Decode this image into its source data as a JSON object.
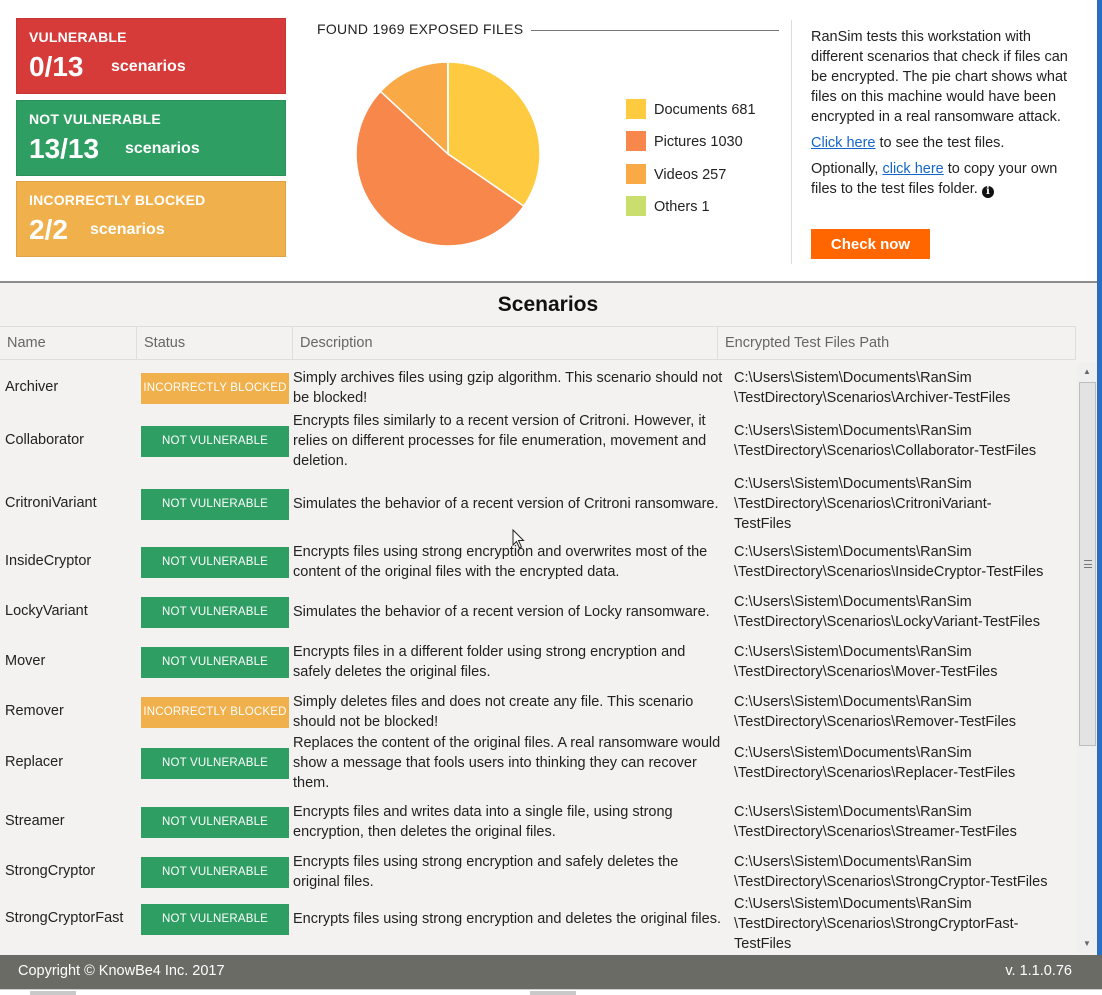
{
  "summary": {
    "vulnerable": {
      "label": "VULNERABLE",
      "value": "0/13",
      "unit": "scenarios",
      "color": "#d63a39"
    },
    "not_vulnerable": {
      "label": "NOT VULNERABLE",
      "value": "13/13",
      "unit": "scenarios",
      "color": "#2e9e63"
    },
    "incorrectly_blocked": {
      "label": "INCORRECTLY BLOCKED",
      "value": "2/2",
      "unit": "scenarios",
      "color": "#f0b04b"
    }
  },
  "chart_data": {
    "type": "pie",
    "title": "FOUND 1969 EXPOSED FILES",
    "categories": [
      "Documents",
      "Pictures",
      "Videos",
      "Others"
    ],
    "values": [
      681,
      1030,
      257,
      1
    ],
    "legend": [
      "Documents 681",
      "Pictures 1030",
      "Videos 257",
      "Others 1"
    ],
    "colors": [
      "#fecb40",
      "#f7874b",
      "#f9aa47",
      "#c8df6d"
    ],
    "legend_position": "right"
  },
  "info": {
    "paragraph1": "RanSim tests this workstation with different scenarios that check if files can be encrypted. The pie chart shows what files on this machine would have been encrypted in a real ransomware attack.",
    "link1": "Click here",
    "after_link1": " to see the test files.",
    "before_link2": "Optionally, ",
    "link2": "click here",
    "after_link2": " to copy your own files to the test files folder.",
    "info_icon": "info-icon",
    "check_button": "Check now"
  },
  "scenarios": {
    "title": "Scenarios",
    "columns": [
      "Name",
      "Status",
      "Description",
      "Encrypted Test Files Path"
    ],
    "status_colors": {
      "INCORRECTLY BLOCKED": "#f0b04b",
      "NOT VULNERABLE": "#2e9e63"
    },
    "rows": [
      {
        "name": "Archiver",
        "status": "INCORRECTLY BLOCKED",
        "description": "Simply archives files using gzip algorithm. This scenario should not be blocked!",
        "path": [
          "C:\\Users\\Sistem\\Documents\\RanSim",
          "\\TestDirectory\\Scenarios\\Archiver-TestFiles"
        ]
      },
      {
        "name": "Collaborator",
        "status": "NOT VULNERABLE",
        "description": "Encrypts files similarly to a recent version of Critroni. However, it relies on different processes for file enumeration, movement and deletion.",
        "path": [
          "C:\\Users\\Sistem\\Documents\\RanSim",
          "\\TestDirectory\\Scenarios\\Collaborator-TestFiles"
        ]
      },
      {
        "name": "CritroniVariant",
        "status": "NOT VULNERABLE",
        "description": "Simulates the behavior of a recent version of Critroni ransomware.",
        "path": [
          "C:\\Users\\Sistem\\Documents\\RanSim",
          "\\TestDirectory\\Scenarios\\CritroniVariant-",
          "TestFiles"
        ]
      },
      {
        "name": "InsideCryptor",
        "status": "NOT VULNERABLE",
        "description": "Encrypts files using strong encryption and overwrites most of the content of the original files with the encrypted data.",
        "path": [
          "C:\\Users\\Sistem\\Documents\\RanSim",
          "\\TestDirectory\\Scenarios\\InsideCryptor-TestFiles"
        ]
      },
      {
        "name": "LockyVariant",
        "status": "NOT VULNERABLE",
        "description": "Simulates the behavior of a recent version of Locky ransomware.",
        "path": [
          "C:\\Users\\Sistem\\Documents\\RanSim",
          "\\TestDirectory\\Scenarios\\LockyVariant-TestFiles"
        ]
      },
      {
        "name": "Mover",
        "status": "NOT VULNERABLE",
        "description": "Encrypts files in a different folder using strong encryption and safely deletes the original files.",
        "path": [
          "C:\\Users\\Sistem\\Documents\\RanSim",
          "\\TestDirectory\\Scenarios\\Mover-TestFiles"
        ]
      },
      {
        "name": "Remover",
        "status": "INCORRECTLY BLOCKED",
        "description": "Simply deletes files and does not create any file. This scenario should not be blocked!",
        "path": [
          "C:\\Users\\Sistem\\Documents\\RanSim",
          "\\TestDirectory\\Scenarios\\Remover-TestFiles"
        ]
      },
      {
        "name": "Replacer",
        "status": "NOT VULNERABLE",
        "description": "Replaces the content of the original files. A real ransomware would show a message that fools users into thinking they can recover them.",
        "path": [
          "C:\\Users\\Sistem\\Documents\\RanSim",
          "\\TestDirectory\\Scenarios\\Replacer-TestFiles"
        ]
      },
      {
        "name": "Streamer",
        "status": "NOT VULNERABLE",
        "description": "Encrypts files and writes data into a single file, using strong encryption, then deletes the original files.",
        "path": [
          "C:\\Users\\Sistem\\Documents\\RanSim",
          "\\TestDirectory\\Scenarios\\Streamer-TestFiles"
        ]
      },
      {
        "name": "StrongCryptor",
        "status": "NOT VULNERABLE",
        "description": "Encrypts files using strong encryption and safely deletes the original files.",
        "path": [
          "C:\\Users\\Sistem\\Documents\\RanSim",
          "\\TestDirectory\\Scenarios\\StrongCryptor-TestFiles"
        ]
      },
      {
        "name": "StrongCryptorFast",
        "status": "NOT VULNERABLE",
        "description": "Encrypts files using strong encryption and deletes the original files.",
        "path": [
          "C:\\Users\\Sistem\\Documents\\RanSim",
          "\\TestDirectory\\Scenarios\\StrongCryptorFast-",
          "TestFiles"
        ]
      }
    ]
  },
  "footer": {
    "copyright": "Copyright © KnowBe4 Inc. 2017",
    "version": "v. 1.1.0.76"
  }
}
